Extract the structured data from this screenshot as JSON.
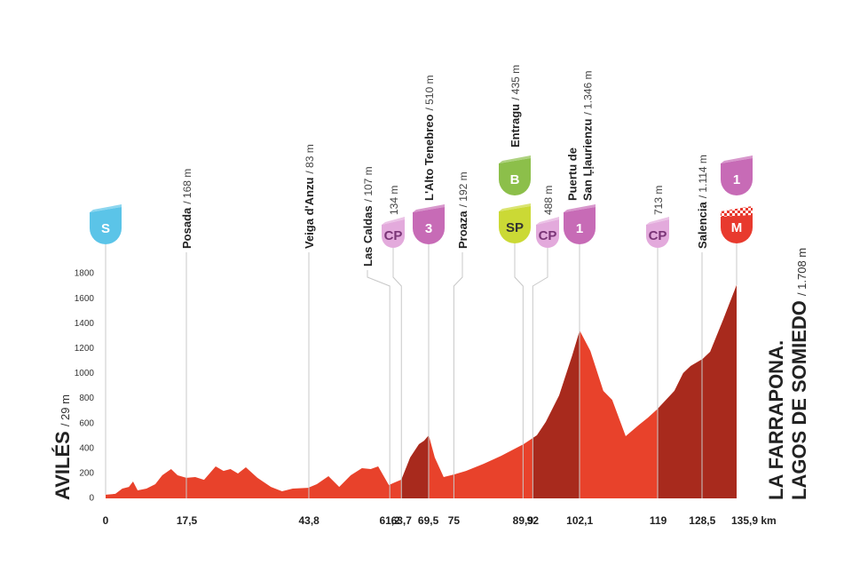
{
  "chart_data": {
    "type": "area",
    "x": [
      0,
      2.1,
      3.6,
      5.0,
      5.9,
      6.9,
      8.8,
      10.7,
      12.2,
      14.1,
      15.5,
      17.4,
      19.3,
      21.2,
      23.7,
      25.4,
      26.9,
      28.5,
      30.2,
      32.7,
      35.6,
      38.0,
      40.3,
      43.6,
      45.5,
      48.0,
      50.3,
      52.8,
      55.2,
      57.1,
      58.7,
      61.0,
      62.3,
      63.7,
      65.6,
      67.5,
      68.6,
      69.6,
      70.9,
      72.8,
      75.1,
      77.6,
      81.4,
      85.2,
      90.0,
      92.9,
      94.8,
      97.7,
      100.5,
      102.1,
      104.4,
      107.2,
      109.1,
      112.0,
      114.9,
      116.8,
      118.9,
      122.5,
      124.4,
      126.0,
      128.6,
      130.2,
      133.0,
      135.9
    ],
    "values": [
      29,
      36,
      78,
      92,
      135,
      64,
      78,
      114,
      185,
      235,
      185,
      164,
      171,
      149,
      256,
      220,
      235,
      199,
      249,
      164,
      92,
      57,
      78,
      85,
      114,
      178,
      92,
      185,
      242,
      235,
      256,
      107,
      128,
      150,
      327,
      434,
      462,
      505,
      327,
      171,
      192,
      220,
      277,
      341,
      434,
      505,
      612,
      825,
      1145,
      1344,
      1181,
      861,
      789,
      498,
      590,
      647,
      718,
      861,
      1003,
      1060,
      1117,
      1174,
      1430,
      1708
    ],
    "color": "#e8422b",
    "shade_color": "#a82a1d",
    "xlim": [
      0,
      135.9
    ],
    "xticks": [
      0,
      {
        "value": 17.5,
        "label": "17,5"
      },
      {
        "value": 43.8,
        "label": "43,8"
      },
      {
        "value": 61.2,
        "label": "61,2"
      },
      {
        "value": 63.7,
        "label": "63,7"
      },
      {
        "value": 69.5,
        "label": "69,5"
      },
      75,
      {
        "value": 89.9,
        "label": "89,9"
      },
      92,
      {
        "value": 102.1,
        "label": "102,1"
      },
      119,
      {
        "value": 128.5,
        "label": "128,5"
      },
      {
        "value": 135.9,
        "label": "135,9 km"
      }
    ],
    "ylim": [
      0,
      1800
    ],
    "yticks": [
      0,
      200,
      400,
      600,
      800,
      1000,
      1200,
      1400,
      1600,
      1800
    ],
    "waypoints": [
      {
        "name": "AVILÉS",
        "altitude": "/ 29 m",
        "km": 0,
        "badges": [
          {
            "text": "S",
            "color": "#5bc4e8",
            "text_color": "#ffffff"
          }
        ]
      },
      {
        "name": "Posada",
        "altitude": "/ 168 m",
        "km": 17.5
      },
      {
        "name": "Veiga d'Anzu",
        "altitude": "/ 83 m",
        "km": 43.8
      },
      {
        "name": "Las Caldas",
        "altitude": "/ 107 m",
        "km": 61.2
      },
      {
        "altitude": "134 m",
        "km": 63.7,
        "badges": [
          {
            "text": "CP",
            "color": "#e3aadc",
            "text_color": "#7a3577"
          }
        ]
      },
      {
        "name": "L'Alto Tenebreo",
        "altitude": "/ 510 m",
        "km": 69.5,
        "shaded": true,
        "badges": [
          {
            "text": "3",
            "color": "#c76bb6",
            "text_color": "#ffffff"
          }
        ]
      },
      {
        "name": "Proaza",
        "altitude": "/ 192 m",
        "km": 75
      },
      {
        "name": "Entragu",
        "altitude": "/ 435 m",
        "km": 89.9,
        "badges": [
          {
            "text": "B",
            "color": "#8cbf4a",
            "text_color": "#ffffff"
          },
          {
            "text": "SP",
            "color": "#cbd935",
            "text_color": "#333333"
          }
        ]
      },
      {
        "altitude": "488 m",
        "km": 92,
        "badges": [
          {
            "text": "CP",
            "color": "#e3aadc",
            "text_color": "#7a3577"
          }
        ]
      },
      {
        "name": [
          "Puertu de",
          "San Ḷḷaurienzu"
        ],
        "altitude": "/ 1.346 m",
        "km": 102.1,
        "shaded": true,
        "badges": [
          {
            "text": "1",
            "color": "#c76bb6",
            "text_color": "#ffffff"
          }
        ]
      },
      {
        "altitude": "713 m",
        "km": 119,
        "badges": [
          {
            "text": "CP",
            "color": "#e3aadc",
            "text_color": "#7a3577"
          }
        ]
      },
      {
        "name": "Salencia",
        "altitude": "/ 1.114 m",
        "km": 128.5,
        "shaded": true
      },
      {
        "name": [
          "LA FARRAPONA.",
          "LAGOS DE SOMIEDO"
        ],
        "altitude": "/ 1.708 m",
        "km": 135.9,
        "shaded": true,
        "badges": [
          {
            "text": "1",
            "color": "#c76bb6",
            "text_color": "#ffffff"
          },
          {
            "text": "M",
            "color": "#e83a2e",
            "text_color": "#ffffff"
          }
        ]
      }
    ]
  }
}
